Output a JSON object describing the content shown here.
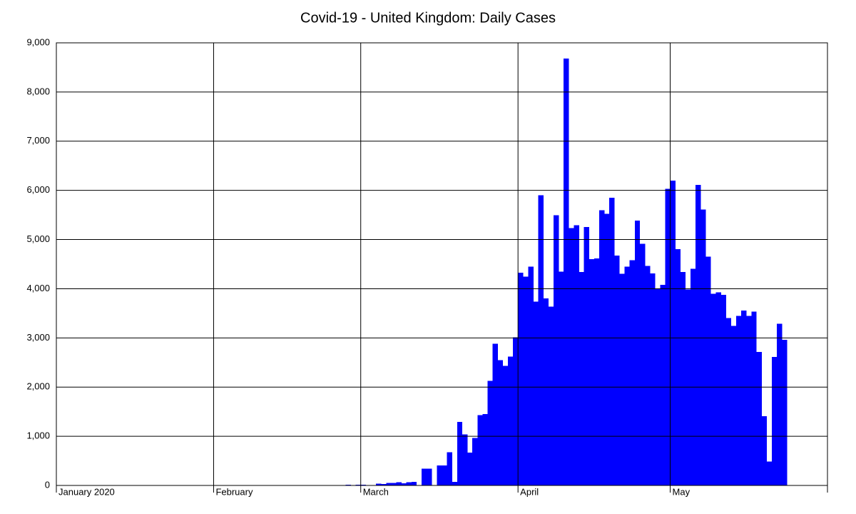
{
  "chart_data": {
    "type": "bar",
    "title": "Covid-19 - United Kingdom: Daily Cases",
    "color": "#0000ff",
    "categories": [
      "January 2020",
      null,
      null,
      null,
      null,
      null,
      null,
      null,
      null,
      null,
      null,
      null,
      null,
      null,
      null,
      null,
      null,
      null,
      null,
      null,
      null,
      null,
      null,
      null,
      null,
      null,
      null,
      null,
      null,
      null,
      null,
      "February",
      null,
      null,
      null,
      null,
      null,
      null,
      null,
      null,
      null,
      null,
      null,
      null,
      null,
      null,
      null,
      null,
      null,
      null,
      null,
      null,
      null,
      null,
      null,
      null,
      null,
      null,
      null,
      null,
      "March",
      null,
      null,
      null,
      null,
      null,
      null,
      null,
      null,
      null,
      null,
      null,
      null,
      null,
      null,
      null,
      null,
      null,
      null,
      null,
      null,
      null,
      null,
      null,
      null,
      null,
      null,
      null,
      null,
      null,
      null,
      "April",
      null,
      null,
      null,
      null,
      null,
      null,
      null,
      null,
      null,
      null,
      null,
      null,
      null,
      null,
      null,
      null,
      null,
      null,
      null,
      null,
      null,
      null,
      null,
      null,
      null,
      null,
      null,
      null,
      null,
      "May",
      null,
      null,
      null,
      null,
      null,
      null,
      null,
      null,
      null,
      null,
      null,
      null,
      null,
      null,
      null,
      null,
      null,
      null,
      null,
      null,
      null,
      null,
      null,
      null,
      null,
      null,
      null,
      null,
      null,
      null
    ],
    "values": [
      0,
      0,
      0,
      0,
      0,
      0,
      0,
      0,
      0,
      0,
      0,
      0,
      0,
      0,
      0,
      0,
      0,
      0,
      0,
      0,
      0,
      0,
      0,
      0,
      0,
      0,
      0,
      0,
      0,
      0,
      2,
      0,
      0,
      0,
      0,
      0,
      0,
      0,
      0,
      0,
      4,
      0,
      0,
      0,
      0,
      0,
      0,
      0,
      0,
      0,
      0,
      0,
      0,
      0,
      4,
      0,
      0,
      13,
      3,
      12,
      13,
      4,
      10,
      35,
      30,
      48,
      48,
      67,
      46,
      67,
      73,
      0,
      342,
      342,
      0,
      407,
      407,
      676,
      70,
      1295,
      1035,
      665,
      967,
      1427,
      1452,
      2129,
      2885,
      2546,
      2433,
      2619,
      3009,
      4324,
      4244,
      4450,
      3735,
      5903,
      3802,
      3634,
      5491,
      4344,
      8681,
      5233,
      5288,
      4342,
      5252,
      4603,
      4617,
      5599,
      5526,
      5850,
      4676,
      4301,
      4451,
      4583,
      5386,
      4913,
      4463,
      4309,
      3996,
      4076,
      6032,
      6201,
      4806,
      4339,
      3985,
      4406,
      6111,
      5614,
      4649,
      3896,
      3923,
      3877,
      3403,
      3242,
      3446,
      3560,
      3450,
      3534,
      2711,
      1405,
      484,
      2615,
      3287,
      2959,
      null,
      null,
      null,
      null,
      null,
      null,
      null,
      null
    ],
    "ylim": [
      0,
      9000
    ],
    "yticks": [
      0,
      {
        "value": 1000,
        "label": "1,000"
      },
      {
        "value": 2000,
        "label": "2,000"
      },
      {
        "value": 3000,
        "label": "3,000"
      },
      {
        "value": 4000,
        "label": "4,000"
      },
      {
        "value": 5000,
        "label": "5,000"
      },
      {
        "value": 6000,
        "label": "6,000"
      },
      {
        "value": 7000,
        "label": "7,000"
      },
      {
        "value": 8000,
        "label": "8,000"
      },
      {
        "value": 9000,
        "label": "9,000"
      }
    ],
    "grid": true
  }
}
